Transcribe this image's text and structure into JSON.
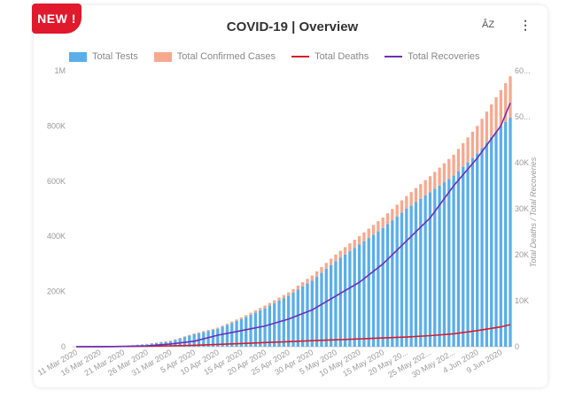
{
  "badge": "NEW !",
  "toolbar": {
    "sort_label": "ÂZ",
    "more_label": "⋮"
  },
  "chart_data": {
    "type": "bar",
    "title": "COVID-19  |  Overview",
    "legend_position": "top",
    "series": [
      {
        "name": "Total Tests",
        "kind": "stacked-bar",
        "axis": "left",
        "color": "#5aaeea"
      },
      {
        "name": "Total Confirmed Cases",
        "kind": "stacked-bar",
        "axis": "left",
        "color": "#f6a98f"
      },
      {
        "name": "Total Deaths",
        "kind": "line",
        "axis": "right",
        "color": "#d81b2c"
      },
      {
        "name": "Total Recoveries",
        "kind": "line",
        "axis": "right",
        "color": "#6a2fb6"
      }
    ],
    "x_tick_labels": [
      "11 Mar 2020",
      "16 Mar 2020",
      "21 Mar 2020",
      "26 Mar 2020",
      "31 Mar 2020",
      "5 Apr 2020",
      "10 Apr 2020",
      "15 Apr 2020",
      "20 Apr 2020",
      "25 Apr 2020",
      "30 Apr 2020",
      "5 May 2020",
      "10 May 2020",
      "15 May 2020",
      "20 May 20...",
      "25 May 202...",
      "30 May 202...",
      "4 Jun 2020",
      "9 Jun 2020"
    ],
    "y_left": {
      "ticks": [
        "0",
        "200K",
        "400K",
        "600K",
        "800K",
        "1M"
      ],
      "range": [
        0,
        1000000
      ]
    },
    "y_right": {
      "ticks": [
        "0",
        "10K",
        "20K",
        "30K",
        "40K",
        "50...",
        "60..."
      ],
      "range": [
        0,
        60000
      ],
      "label": "Total Deaths / Total Recoveries"
    },
    "dates": [
      "2020-03-11",
      "2020-03-16",
      "2020-03-21",
      "2020-03-26",
      "2020-03-31",
      "2020-04-05",
      "2020-04-10",
      "2020-04-15",
      "2020-04-20",
      "2020-04-25",
      "2020-04-30",
      "2020-05-05",
      "2020-05-10",
      "2020-05-15",
      "2020-05-20",
      "2020-05-25",
      "2020-05-30",
      "2020-06-04",
      "2020-06-09",
      "2020-06-11"
    ],
    "total_tests": [
      0,
      1000,
      3000,
      9000,
      20000,
      45000,
      65000,
      100000,
      140000,
      185000,
      240000,
      310000,
      370000,
      430000,
      500000,
      560000,
      620000,
      700000,
      800000,
      830000
    ],
    "total_confirmed_cases": [
      0,
      100,
      300,
      1000,
      2000,
      3000,
      4000,
      6000,
      9000,
      12000,
      18000,
      24000,
      31000,
      38000,
      46000,
      58000,
      76000,
      100000,
      130000,
      150000
    ],
    "total_deaths": [
      0,
      20,
      50,
      100,
      200,
      300,
      500,
      700,
      900,
      1100,
      1300,
      1500,
      1700,
      1900,
      2100,
      2400,
      2800,
      3500,
      4300,
      4800
    ],
    "total_recoveries": [
      0,
      20,
      50,
      200,
      600,
      1200,
      2500,
      3500,
      4500,
      6000,
      8000,
      11000,
      14000,
      18000,
      23000,
      28000,
      35000,
      41000,
      48000,
      53000
    ]
  }
}
